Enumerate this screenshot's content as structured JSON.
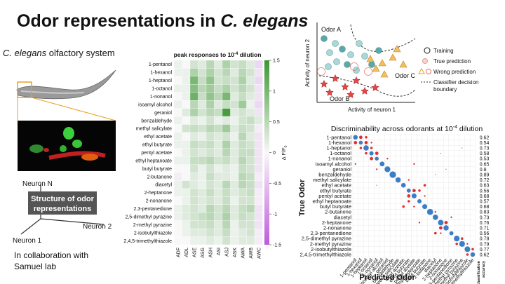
{
  "title": [
    "Odor representations in ",
    "C. elegans"
  ],
  "left": {
    "heading": [
      "C. elegans",
      " olfactory system"
    ],
    "axes": [
      "Neuron N",
      "Neuron 1",
      "Neuron 2"
    ],
    "box": [
      "Structure of odor",
      "representations"
    ],
    "collab": [
      "In collaboration with",
      "Samuel lab"
    ]
  },
  "chart_data": [
    {
      "type": "heatmap",
      "title": [
        "peak responses to 10",
        "-4",
        " dilution"
      ],
      "rows": [
        "1-pentanol",
        "1-hexanol",
        "1-heptanol",
        "1-octanol",
        "1-nonanol",
        "isoamyl alcohol",
        "geraniol",
        "benzaldehyde",
        "methyl salicylate",
        "ethyl acetate",
        "ethyl butyrate",
        "pentyl acetate",
        "ethyl heptanoate",
        "butyl butyrate",
        "2-butanone",
        "diacetyl",
        "2-heptanone",
        "2-nonanone",
        "2,3-pentanedione",
        "2,5-dimethyl pyrazine",
        "2-methyl pyrazine",
        "2-isobutylthiazole",
        "2,4,5-trimethylthiazole"
      ],
      "columns": [
        "ADF",
        "ADL",
        "ASE",
        "ASG",
        "ASH",
        "ASI",
        "ASJ",
        "ASK",
        "AWA",
        "AWB",
        "AWC"
      ],
      "values": [
        [
          0.1,
          0,
          0.3,
          0.2,
          0.5,
          0.2,
          0.6,
          0.3,
          0.4,
          0.2,
          -0.3
        ],
        [
          0.1,
          0.1,
          0.6,
          0.3,
          0.6,
          0.3,
          0.5,
          0.2,
          0.5,
          0.3,
          -0.2
        ],
        [
          0,
          0.1,
          1,
          0.4,
          0.8,
          0.3,
          0.4,
          0.3,
          0.6,
          0.2,
          -0.3
        ],
        [
          0.1,
          0.1,
          0.9,
          0.5,
          0.7,
          0.4,
          0.6,
          0.3,
          0.5,
          0.3,
          -0.2
        ],
        [
          0,
          0.1,
          1.1,
          0.4,
          0.8,
          0.5,
          1,
          0.2,
          0.4,
          0.2,
          -0.2
        ],
        [
          0.1,
          0,
          0.5,
          0.2,
          0.6,
          0.2,
          0.4,
          0.3,
          0.7,
          0.1,
          -0.3
        ],
        [
          0,
          0.2,
          0.6,
          0.3,
          0.5,
          0.4,
          1.4,
          0.2,
          0.3,
          0.2,
          -0.2
        ],
        [
          0.1,
          0,
          0.2,
          0.1,
          0.3,
          0.1,
          0.2,
          0.1,
          0.3,
          0.4,
          0.2
        ],
        [
          0,
          0.3,
          0.4,
          0.3,
          0.5,
          0.4,
          0.7,
          0.2,
          0.4,
          0.3,
          -0.1
        ],
        [
          0.1,
          0,
          0.2,
          0.1,
          0.3,
          0.2,
          0.3,
          0.1,
          0.5,
          0.2,
          -0.2
        ],
        [
          0.1,
          0.1,
          0.4,
          0.3,
          0.4,
          0.2,
          0.6,
          0.2,
          0.4,
          0.3,
          -0.2
        ],
        [
          0,
          0.1,
          0.3,
          0.2,
          0.3,
          0.2,
          0.5,
          0.2,
          0.4,
          0.4,
          -0.2
        ],
        [
          0.1,
          0.1,
          0.4,
          0.4,
          0.5,
          0.3,
          0.4,
          0.2,
          0.5,
          0.3,
          -0.2
        ],
        [
          0,
          0,
          0.3,
          0.1,
          0.3,
          0.1,
          0.2,
          0.1,
          0.4,
          0.3,
          -0.2
        ],
        [
          -0.1,
          0,
          0.2,
          0.1,
          0.4,
          0.2,
          0.2,
          0.1,
          0.5,
          0.4,
          -0.1
        ],
        [
          0.1,
          0.3,
          0.2,
          0.1,
          0.3,
          0.2,
          0.5,
          0.2,
          0.5,
          0.4,
          -0.2
        ],
        [
          0.1,
          0.1,
          0.3,
          0.2,
          0.4,
          0.2,
          0.4,
          0.2,
          0.3,
          0.4,
          -0.1
        ],
        [
          0,
          0.1,
          0.3,
          0.2,
          0.3,
          0.2,
          0.4,
          0.1,
          0.3,
          0.3,
          -0.1
        ],
        [
          0.1,
          0.2,
          0.3,
          0.2,
          0.5,
          0.3,
          0.5,
          0.2,
          0.4,
          0.5,
          -0.2
        ],
        [
          0.1,
          0.2,
          0.3,
          0.4,
          0.5,
          0.3,
          0.6,
          0.2,
          0.4,
          0.3,
          -0.2
        ],
        [
          0,
          0.1,
          0.3,
          0.3,
          0.4,
          0.2,
          0.5,
          0.1,
          0.3,
          0.3,
          -0.2
        ],
        [
          0,
          0.1,
          0.2,
          0.2,
          0.3,
          0.2,
          0.4,
          0.1,
          0.2,
          0.3,
          -0.1
        ],
        [
          0,
          0,
          0.1,
          0.1,
          0.2,
          0.1,
          0.3,
          0.1,
          0.2,
          0.2,
          -0.1
        ]
      ],
      "clim": [
        -1.5,
        1.5
      ],
      "colorbar_ticks": [
        1.5,
        1,
        0.5,
        0,
        -0.5,
        -1,
        -1.5
      ],
      "colorbar_label": [
        "Δ F/F",
        "0"
      ]
    },
    {
      "type": "diagram",
      "labels": [
        "Odor A",
        "Odor B",
        "Odor C"
      ],
      "legend": [
        "Training",
        "True prediction",
        "Wrong prediction",
        "Classifier decision",
        "boundary"
      ],
      "xlabel": "Activity of neuron 1",
      "ylabel": "Activity of neuron 2"
    },
    {
      "type": "dot-matrix",
      "title": [
        "Discriminability across odorants at 10",
        "-4",
        " dilution"
      ],
      "odors": [
        "1-pentanol",
        "1-hexanol",
        "1-heptanol",
        "1-octanol",
        "1-nonanol",
        "isoamyl alcohol",
        "geraniol",
        "benzaldehyde",
        "methyl salicylate",
        "ethyl acetate",
        "ethyl butyrate",
        "pentyl acetate",
        "ethyl heptanoate",
        "butyl butyrate",
        "2-butanone",
        "diacetyl",
        "2-heptanone",
        "2-nonanone",
        "2,3-pentanedione",
        "2,5-dimethyl pyrazine",
        "2-methyl pyrazine",
        "2-isobutylthiazole",
        "2,4,5-trimethylthiazole"
      ],
      "accuracy": [
        0.62,
        0.54,
        0.73,
        0.58,
        0.53,
        0.65,
        0.8,
        0.89,
        0.72,
        0.63,
        0.56,
        0.68,
        0.57,
        0.68,
        0.83,
        0.73,
        0.76,
        0.71,
        0.56,
        0.78,
        0.79,
        0.77,
        0.62
      ],
      "confusions": [
        [
          0,
          1,
          0.2
        ],
        [
          0,
          2,
          0.15
        ],
        [
          1,
          0,
          0.2
        ],
        [
          1,
          2,
          0.2
        ],
        [
          1,
          3,
          0.1
        ],
        [
          2,
          1,
          0.15
        ],
        [
          2,
          3,
          0.15
        ],
        [
          3,
          2,
          0.15
        ],
        [
          3,
          4,
          0.2
        ],
        [
          4,
          3,
          0.2
        ],
        [
          4,
          6,
          0.1
        ],
        [
          5,
          0,
          0.1
        ],
        [
          5,
          11,
          0.1
        ],
        [
          6,
          4,
          0.1
        ],
        [
          7,
          15,
          0.05
        ],
        [
          8,
          10,
          0.1
        ],
        [
          9,
          13,
          0.15
        ],
        [
          10,
          11,
          0.2
        ],
        [
          10,
          12,
          0.15
        ],
        [
          11,
          10,
          0.2
        ],
        [
          11,
          13,
          0.1
        ],
        [
          12,
          10,
          0.15
        ],
        [
          13,
          9,
          0.15
        ],
        [
          13,
          11,
          0.1
        ],
        [
          14,
          15,
          0.1
        ],
        [
          15,
          18,
          0.1
        ],
        [
          16,
          17,
          0.2
        ],
        [
          16,
          12,
          0.1
        ],
        [
          17,
          16,
          0.2
        ],
        [
          18,
          15,
          0.15
        ],
        [
          18,
          16,
          0.1
        ],
        [
          19,
          20,
          0.15
        ],
        [
          20,
          19,
          0.15
        ],
        [
          20,
          21,
          0.1
        ],
        [
          21,
          22,
          0.15
        ],
        [
          22,
          21,
          0.15
        ],
        [
          3,
          16,
          0.05
        ],
        [
          6,
          17,
          0.05
        ],
        [
          2,
          20,
          0.05
        ],
        [
          9,
          4,
          0.05
        ]
      ],
      "xlabel": "Predicted Odor",
      "ylabel": "True Odor",
      "accuracy_label": [
        "classification",
        "accuracy"
      ]
    }
  ]
}
